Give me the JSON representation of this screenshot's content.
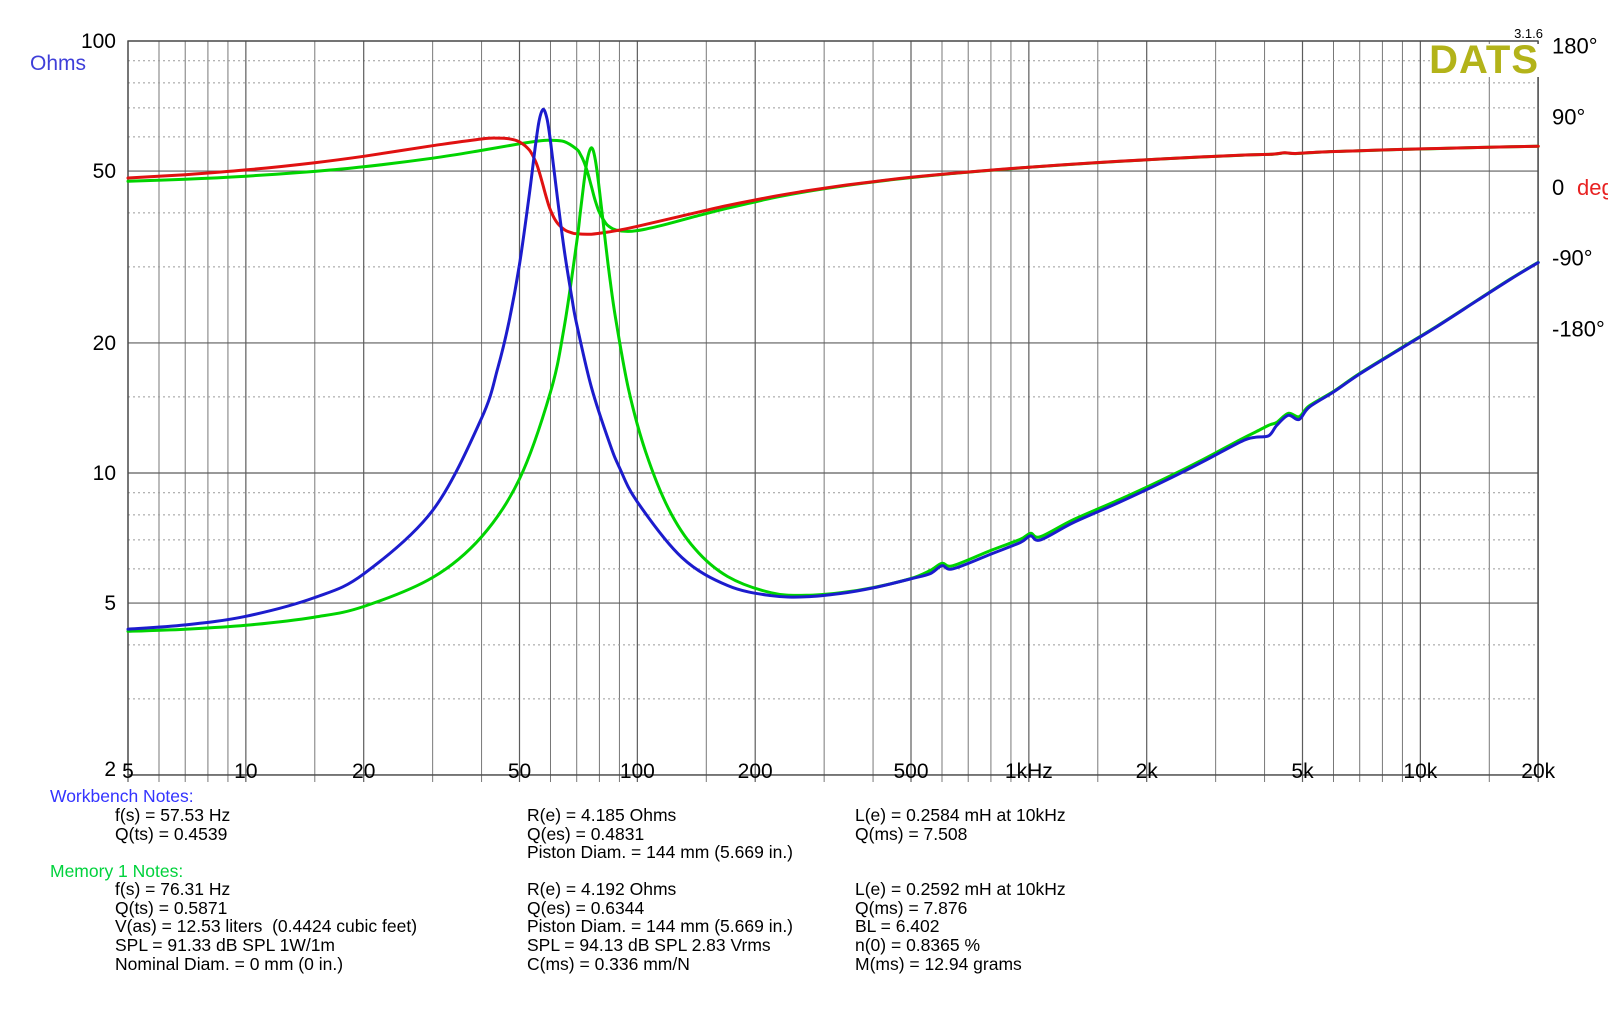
{
  "app": {
    "logo": "DATS",
    "logo_color": "#b3b319",
    "version": "3.1.6"
  },
  "chart_data": {
    "type": "line",
    "title": "",
    "x_axis": {
      "scale": "log",
      "range_hz": [
        5,
        20000
      ],
      "major_ticks": [
        {
          "label": "5",
          "f": 5
        },
        {
          "label": "10",
          "f": 10
        },
        {
          "label": "20",
          "f": 20
        },
        {
          "label": "50",
          "f": 50
        },
        {
          "label": "100",
          "f": 100
        },
        {
          "label": "200",
          "f": 200
        },
        {
          "label": "500",
          "f": 500
        },
        {
          "label": "1kHz",
          "f": 1000
        },
        {
          "label": "2k",
          "f": 2000
        },
        {
          "label": "5k",
          "f": 5000
        },
        {
          "label": "10k",
          "f": 10000
        },
        {
          "label": "20k",
          "f": 20000
        }
      ],
      "minor_ticks": [
        6,
        7,
        8,
        9,
        15,
        30,
        40,
        60,
        70,
        80,
        90,
        150,
        300,
        400,
        600,
        700,
        800,
        900,
        1500,
        3000,
        4000,
        6000,
        7000,
        8000,
        9000,
        15000
      ]
    },
    "y_left_axis": {
      "label": "Ohms",
      "label_color": "#3f3fd9",
      "scale": "log",
      "range_ohms": [
        2,
        100
      ],
      "major_ticks": [
        100,
        50,
        20,
        10,
        5,
        2
      ],
      "minor_ticks": [
        90,
        80,
        70,
        60,
        40,
        30,
        15,
        9,
        8,
        7,
        6,
        4,
        3
      ]
    },
    "y_right_axis": {
      "unit_word": "deg",
      "unit_color": "#e82222",
      "range_deg": [
        -180,
        180
      ],
      "ticks": [
        {
          "label": "180°",
          "deg": 180
        },
        {
          "label": "90°",
          "deg": 90
        },
        {
          "label": "0",
          "deg": 0,
          "suffix": "deg"
        },
        {
          "label": "-90°",
          "deg": -90
        },
        {
          "label": "-180°",
          "deg": -180
        }
      ]
    },
    "grid": true,
    "series": [
      {
        "name": "memory1-phase",
        "color": "#00d400",
        "width": 3,
        "axis": "deg",
        "points": [
          [
            5,
            7.3
          ],
          [
            7,
            9.9
          ],
          [
            10,
            13.7
          ],
          [
            15,
            19.9
          ],
          [
            20,
            25.7
          ],
          [
            30,
            36.7
          ],
          [
            40,
            46.6
          ],
          [
            50,
            54.9
          ],
          [
            57,
            59.0
          ],
          [
            60,
            59.4
          ],
          [
            65,
            57.8
          ],
          [
            70,
            48.1
          ],
          [
            71.5,
            41.6
          ],
          [
            73,
            32.4
          ],
          [
            74.5,
            19.7
          ],
          [
            76.3,
            0.7
          ],
          [
            78,
            -16.8
          ],
          [
            80,
            -32.5
          ],
          [
            83,
            -46.0
          ],
          [
            85,
            -50.7
          ],
          [
            88,
            -54.6
          ],
          [
            95,
            -56.5
          ],
          [
            105,
            -53.6
          ],
          [
            120,
            -46.7
          ],
          [
            140,
            -37.7
          ],
          [
            170,
            -27.0
          ],
          [
            220,
            -14.3
          ],
          [
            270,
            -6.0
          ],
          [
            330,
            0.8
          ],
          [
            400,
            6.4
          ],
          [
            500,
            12.0
          ],
          [
            620,
            16.6
          ],
          [
            800,
            21.3
          ],
          [
            1000,
            25.0
          ],
          [
            1300,
            29.0
          ],
          [
            1700,
            32.6
          ],
          [
            2200,
            35.7
          ],
          [
            2800,
            38.3
          ],
          [
            3500,
            40.5
          ],
          [
            4200,
            41.7
          ],
          [
            4500,
            43.4
          ],
          [
            4800,
            42.5
          ],
          [
            5500,
            44.3
          ],
          [
            7000,
            46.1
          ],
          [
            9000,
            47.8
          ],
          [
            11000,
            48.9
          ],
          [
            14000,
            50.2
          ],
          [
            17000,
            51.1
          ],
          [
            20000,
            51.8
          ]
        ]
      },
      {
        "name": "workbench-phase",
        "color": "#e01111",
        "width": 3,
        "axis": "deg",
        "points": [
          [
            5,
            11.5
          ],
          [
            7,
            15.7
          ],
          [
            10,
            21.7
          ],
          [
            15,
            30.9
          ],
          [
            20,
            39.1
          ],
          [
            30,
            52.5
          ],
          [
            40,
            61.1
          ],
          [
            44,
            62.2
          ],
          [
            47,
            61.3
          ],
          [
            50,
            57.4
          ],
          [
            53,
            46.9
          ],
          [
            55,
            32.0
          ],
          [
            56.2,
            18.5
          ],
          [
            57.5,
            0.9
          ],
          [
            58.8,
            -16.5
          ],
          [
            60,
            -29.5
          ],
          [
            62,
            -43.7
          ],
          [
            65,
            -54.0
          ],
          [
            68,
            -58.3
          ],
          [
            70,
            -59.6
          ],
          [
            76.3,
            -60.0
          ],
          [
            85,
            -57.0
          ],
          [
            90,
            -54.8
          ],
          [
            100,
            -50.0
          ],
          [
            130,
            -36.8
          ],
          [
            170,
            -23.6
          ],
          [
            220,
            -12.5
          ],
          [
            270,
            -5.0
          ],
          [
            330,
            1.5
          ],
          [
            400,
            6.8
          ],
          [
            500,
            12.3
          ],
          [
            620,
            16.8
          ],
          [
            800,
            21.5
          ],
          [
            1000,
            25.2
          ],
          [
            1300,
            29.1
          ],
          [
            1700,
            32.7
          ],
          [
            2200,
            35.8
          ],
          [
            2800,
            38.4
          ],
          [
            3500,
            40.6
          ],
          [
            4200,
            41.8
          ],
          [
            4500,
            43.5
          ],
          [
            4800,
            42.6
          ],
          [
            5500,
            44.4
          ],
          [
            7000,
            46.2
          ],
          [
            9000,
            47.9
          ],
          [
            11000,
            49.0
          ],
          [
            14000,
            50.3
          ],
          [
            17000,
            51.2
          ],
          [
            20000,
            51.9
          ]
        ]
      },
      {
        "name": "memory1-impedance",
        "color": "#00d400",
        "width": 3,
        "axis": "ohms",
        "points": [
          [
            5,
            4.3
          ],
          [
            7,
            4.35
          ],
          [
            10,
            4.44
          ],
          [
            15,
            4.64
          ],
          [
            20,
            4.91
          ],
          [
            30,
            5.73
          ],
          [
            40,
            7.12
          ],
          [
            50,
            9.69
          ],
          [
            60,
            15.4
          ],
          [
            65,
            21.7
          ],
          [
            70,
            34.2
          ],
          [
            71.5,
            40.1
          ],
          [
            73,
            46.8
          ],
          [
            74.5,
            53.2
          ],
          [
            76.3,
            56.6
          ],
          [
            78,
            53.4
          ],
          [
            80,
            45.2
          ],
          [
            83,
            33.8
          ],
          [
            85,
            28.4
          ],
          [
            88,
            22.8
          ],
          [
            95,
            15.6
          ],
          [
            105,
            11.2
          ],
          [
            120,
            8.28
          ],
          [
            140,
            6.69
          ],
          [
            170,
            5.76
          ],
          [
            220,
            5.28
          ],
          [
            270,
            5.21
          ],
          [
            330,
            5.28
          ],
          [
            400,
            5.43
          ],
          [
            500,
            5.7
          ],
          [
            560,
            5.95
          ],
          [
            600,
            6.18
          ],
          [
            640,
            6.1
          ],
          [
            800,
            6.62
          ],
          [
            950,
            7.02
          ],
          [
            1010,
            7.25
          ],
          [
            1070,
            7.12
          ],
          [
            1300,
            7.8
          ],
          [
            1700,
            8.67
          ],
          [
            2200,
            9.66
          ],
          [
            2800,
            10.77
          ],
          [
            3500,
            12.0
          ],
          [
            3800,
            12.45
          ],
          [
            4100,
            12.9
          ],
          [
            4300,
            13.1
          ],
          [
            4600,
            13.75
          ],
          [
            4900,
            13.5
          ],
          [
            5200,
            14.3
          ],
          [
            6000,
            15.45
          ],
          [
            7000,
            17.0
          ],
          [
            9000,
            19.55
          ],
          [
            11000,
            21.85
          ],
          [
            14000,
            25.15
          ],
          [
            17000,
            28.15
          ],
          [
            20000,
            30.75
          ]
        ]
      },
      {
        "name": "workbench-impedance",
        "color": "#1c1ccd",
        "width": 3,
        "axis": "ohms",
        "points": [
          [
            5,
            4.35
          ],
          [
            7,
            4.45
          ],
          [
            10,
            4.66
          ],
          [
            15,
            5.15
          ],
          [
            20,
            5.84
          ],
          [
            30,
            8.19
          ],
          [
            40,
            13.4
          ],
          [
            44,
            17.5
          ],
          [
            47,
            22.4
          ],
          [
            50,
            30.4
          ],
          [
            53,
            44.3
          ],
          [
            55,
            57.9
          ],
          [
            56.2,
            65.8
          ],
          [
            57.5,
            69.5
          ],
          [
            58.8,
            65.9
          ],
          [
            60,
            58.6
          ],
          [
            62,
            45.9
          ],
          [
            65,
            33.0
          ],
          [
            68,
            25.5
          ],
          [
            70,
            22.1
          ],
          [
            76.3,
            15.8
          ],
          [
            85,
            11.7
          ],
          [
            90,
            10.3
          ],
          [
            100,
            8.57
          ],
          [
            130,
            6.37
          ],
          [
            170,
            5.49
          ],
          [
            220,
            5.2
          ],
          [
            270,
            5.17
          ],
          [
            330,
            5.26
          ],
          [
            400,
            5.42
          ],
          [
            500,
            5.69
          ],
          [
            560,
            5.85
          ],
          [
            600,
            6.1
          ],
          [
            640,
            6.0
          ],
          [
            800,
            6.49
          ],
          [
            950,
            6.9
          ],
          [
            1010,
            7.15
          ],
          [
            1070,
            7.0
          ],
          [
            1300,
            7.68
          ],
          [
            1700,
            8.55
          ],
          [
            2200,
            9.54
          ],
          [
            2800,
            10.65
          ],
          [
            3500,
            11.85
          ],
          [
            3800,
            12.1
          ],
          [
            4100,
            12.2
          ],
          [
            4300,
            12.9
          ],
          [
            4600,
            13.6
          ],
          [
            4900,
            13.3
          ],
          [
            5200,
            14.2
          ],
          [
            6000,
            15.4
          ],
          [
            7000,
            16.95
          ],
          [
            9000,
            19.5
          ],
          [
            11000,
            21.8
          ],
          [
            14000,
            25.1
          ],
          [
            17000,
            28.1
          ],
          [
            20000,
            30.7
          ]
        ]
      }
    ]
  },
  "notes": {
    "workbench": {
      "title": "Workbench Notes:",
      "title_color": "#3333ff",
      "columns": [
        [
          "f(s) = 57.53 Hz",
          "Q(ts) = 0.4539"
        ],
        [
          "R(e) = 4.185 Ohms",
          "Q(es) = 0.4831",
          "Piston Diam. = 144 mm (5.669 in.)"
        ],
        [
          "L(e) = 0.2584 mH at 10kHz",
          "Q(ms) = 7.508"
        ]
      ]
    },
    "memory1": {
      "title": "Memory 1 Notes:",
      "title_color": "#00d23c",
      "columns": [
        [
          "f(s) = 76.31 Hz",
          "Q(ts) = 0.5871",
          "V(as) = 12.53 liters  (0.4424 cubic feet)",
          "SPL = 91.33 dB SPL 1W/1m",
          "Nominal Diam. = 0 mm (0 in.)"
        ],
        [
          "R(e) = 4.192 Ohms",
          "Q(es) = 0.6344",
          "Piston Diam. = 144 mm (5.669 in.)",
          "SPL = 94.13 dB SPL 2.83 Vrms",
          "C(ms) = 0.336 mm/N"
        ],
        [
          "L(e) = 0.2592 mH at 10kHz",
          "Q(ms) = 7.876",
          "BL = 6.402",
          "n(0) = 0.8365 %",
          "M(ms) = 12.94 grams"
        ]
      ]
    }
  }
}
